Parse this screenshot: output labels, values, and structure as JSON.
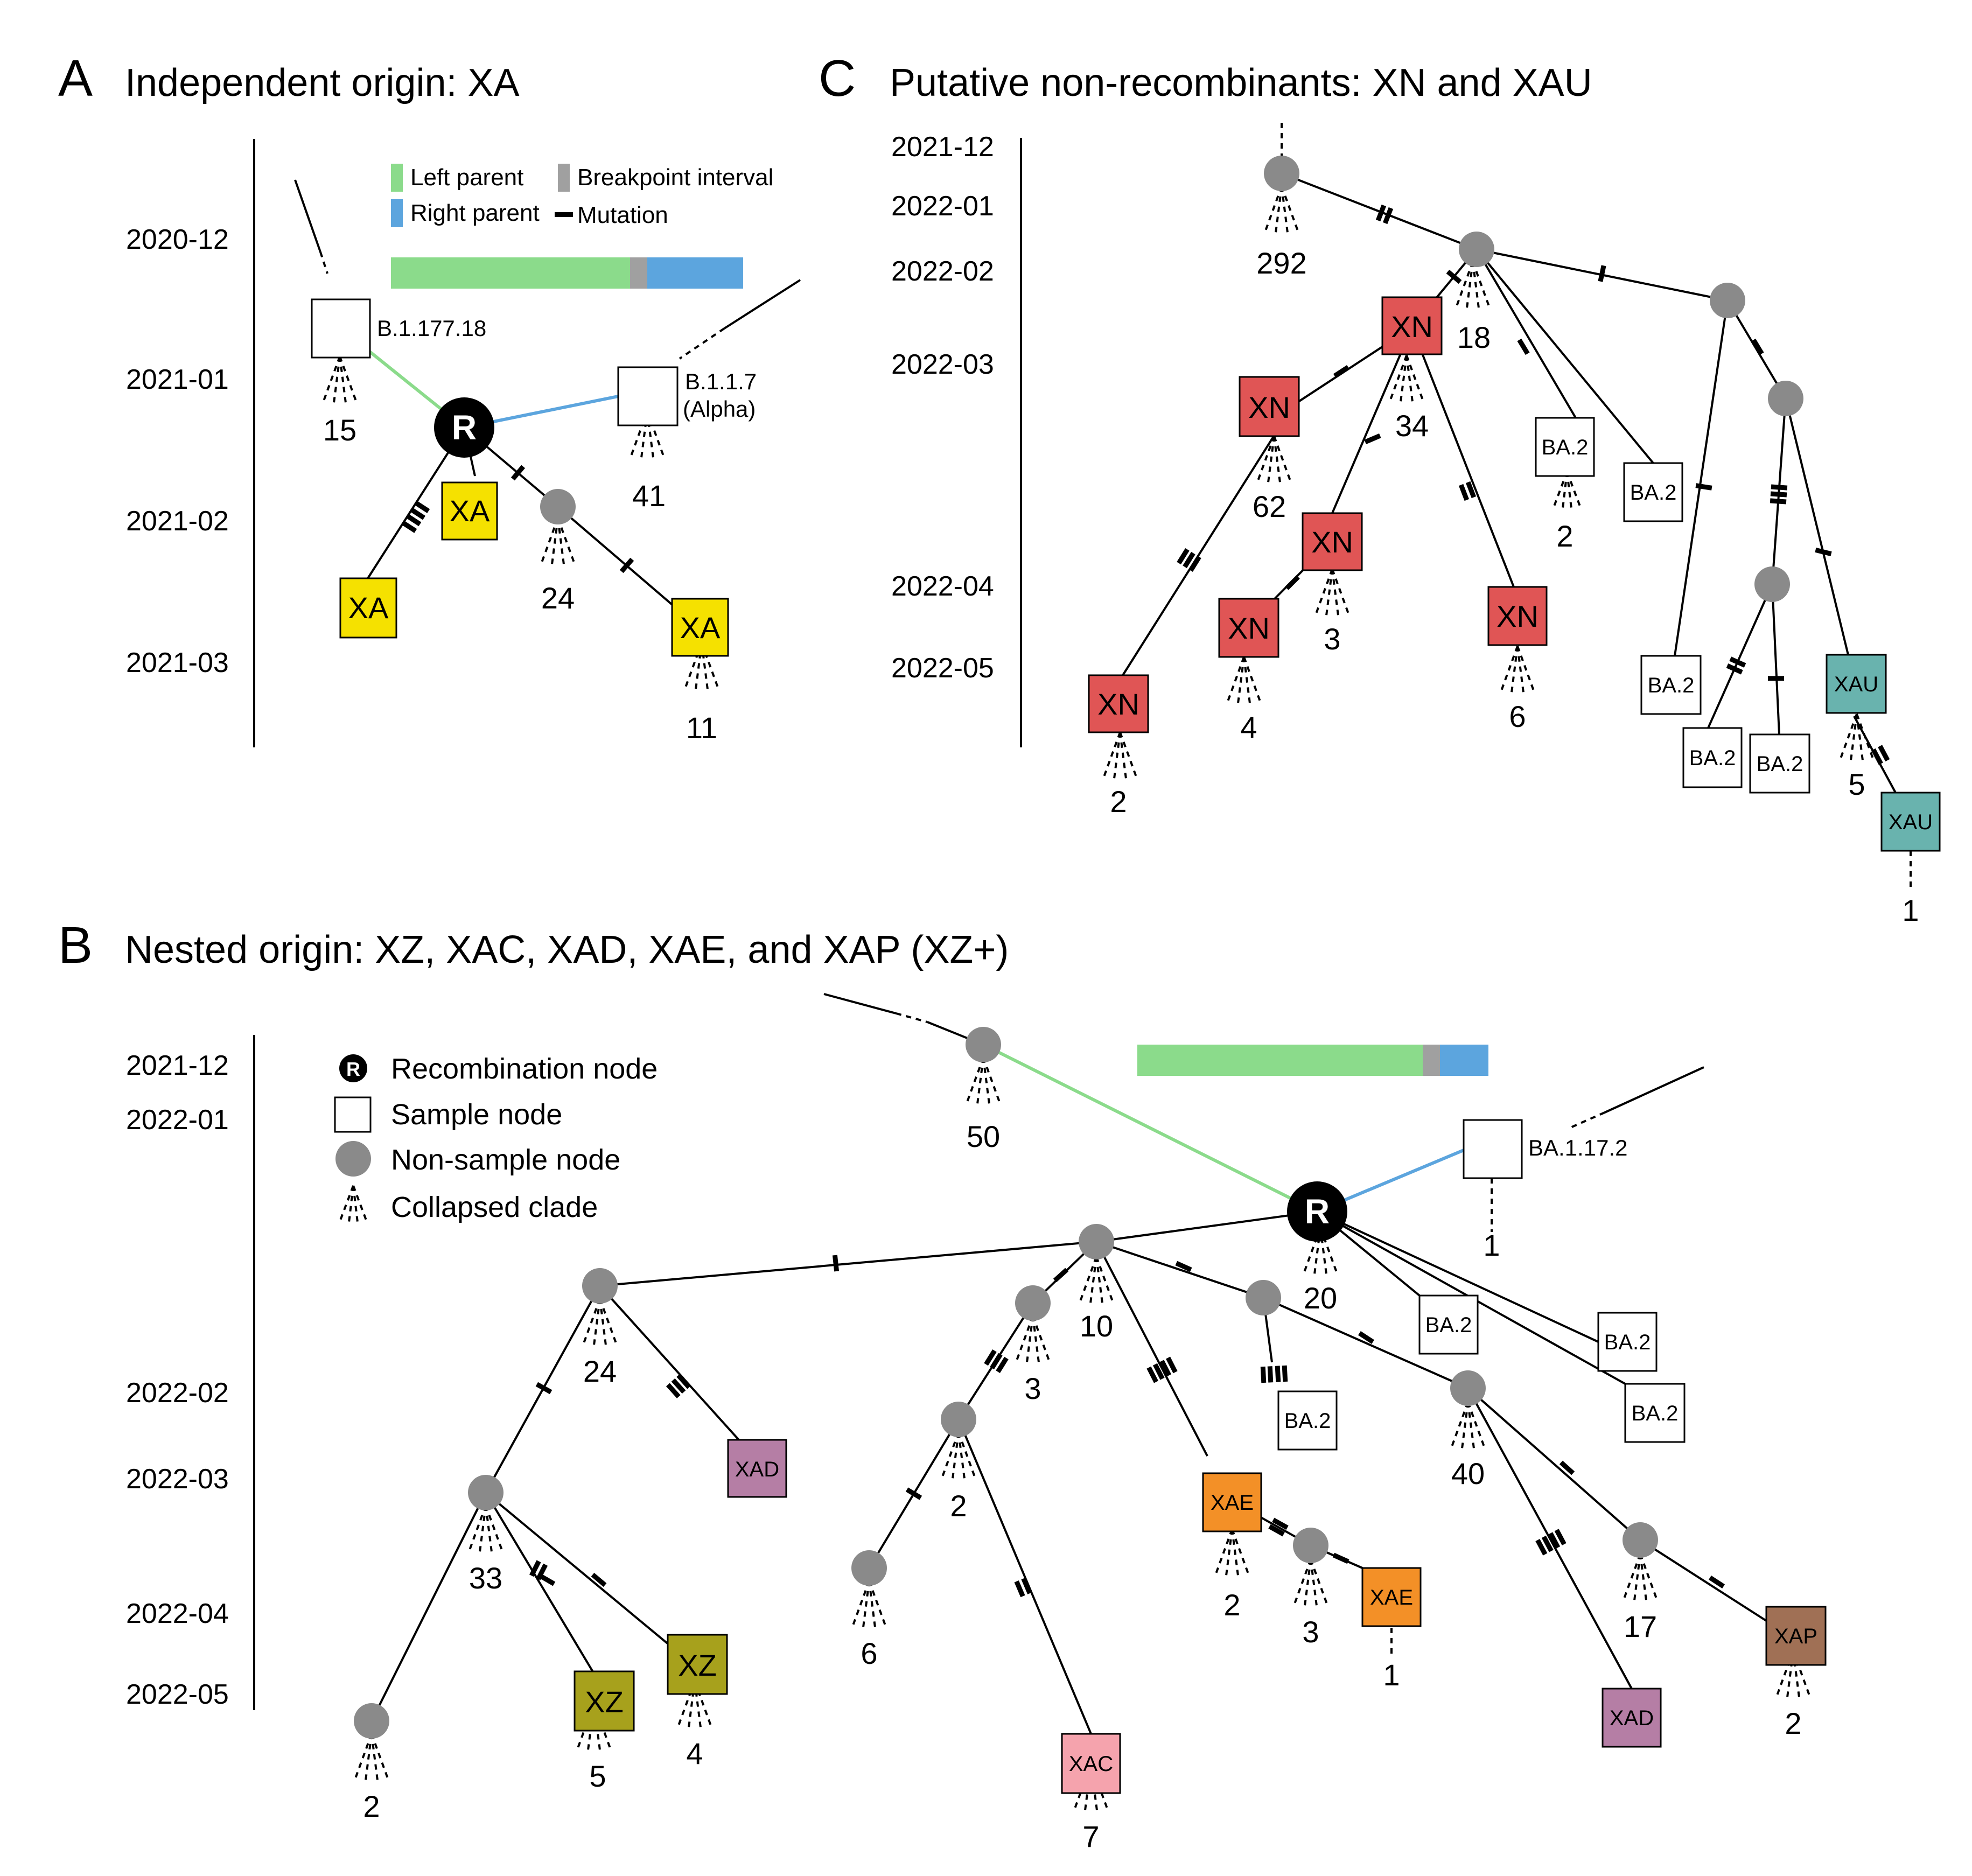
{
  "panels": {
    "A": {
      "letter": "A",
      "title": "Independent origin: XA"
    },
    "B": {
      "letter": "B",
      "title": "Nested origin: XZ, XAC, XAD, XAE, and XAP (XZ+)"
    },
    "C": {
      "letter": "C",
      "title": "Putative non-recombinants: XN and XAU"
    }
  },
  "axisA": [
    "2020-12",
    "2021-01",
    "2021-02",
    "2021-03"
  ],
  "axisB": [
    "2021-12",
    "2022-01",
    "2022-02",
    "2022-03",
    "2022-04",
    "2022-05"
  ],
  "axisC": [
    "2021-12",
    "2022-01",
    "2022-02",
    "2022-03",
    "2022-04",
    "2022-05"
  ],
  "legendTop": {
    "left_parent": "Left parent",
    "right_parent": "Right parent",
    "breakpoint": "Breakpoint interval",
    "mutation": "Mutation"
  },
  "legendB": {
    "recomb_letter": "R",
    "recomb": "Recombination node",
    "sample": "Sample node",
    "nonsample": "Non-sample node",
    "collapsed": "Collapsed clade"
  },
  "colors": {
    "left": "#8bdb8b",
    "right": "#5ca5de",
    "breakpoint": "#a0a0a0",
    "XA": "#f5e100",
    "XN": "#e05555",
    "XAU": "#69b3ae",
    "XZ": "#a7a11c",
    "XAD": "#b57ea5",
    "XAE": "#f39027",
    "XAC": "#f5a3ad",
    "XAP": "#a07055",
    "node": "#8a8a8a"
  },
  "A": {
    "parents": {
      "left": "B.1.177.18",
      "right1": "B.1.1.7",
      "right2": "(Alpha)"
    },
    "R": "R",
    "samples": {
      "xa_top": "XA",
      "xa_left": "XA",
      "xa_right": "XA"
    },
    "counts": {
      "c15": "15",
      "c41": "41",
      "c24": "24",
      "c11": "11"
    }
  },
  "B": {
    "parent_right": "BA.1.17.2",
    "R": "R",
    "counts": {
      "c50": "50",
      "c1a": "1",
      "c20": "20",
      "c10": "10",
      "c24": "24",
      "c3a": "3",
      "c40": "40",
      "c33": "33",
      "c2a": "2",
      "c2b": "2",
      "c3b": "3",
      "c1b": "1",
      "c17": "17",
      "c6": "6",
      "c2c": "2",
      "c5": "5",
      "c4": "4",
      "c2d": "2",
      "c7": "7"
    },
    "samples": {
      "ba2a": "BA.2",
      "ba2b": "BA.2",
      "ba2c": "BA.2",
      "ba2d": "BA.2",
      "xad1": "XAD",
      "xae1": "XAE",
      "xae2": "XAE",
      "xap": "XAP",
      "xad2": "XAD",
      "xz1": "XZ",
      "xz2": "XZ",
      "xac": "XAC"
    }
  },
  "C": {
    "counts": {
      "c292": "292",
      "c18": "18",
      "c34": "34",
      "c62": "62",
      "c2a": "2",
      "c3": "3",
      "c4": "4",
      "c6": "6",
      "c2b": "2",
      "c5": "5",
      "c1": "1"
    },
    "samples": {
      "xn1": "XN",
      "xn2": "XN",
      "xn3": "XN",
      "xn4": "XN",
      "xn5": "XN",
      "xn6": "XN",
      "ba2a": "BA.2",
      "ba2b": "BA.2",
      "ba2c": "BA.2",
      "ba2d": "BA.2",
      "ba2e": "BA.2",
      "xau1": "XAU",
      "xau2": "XAU"
    }
  }
}
